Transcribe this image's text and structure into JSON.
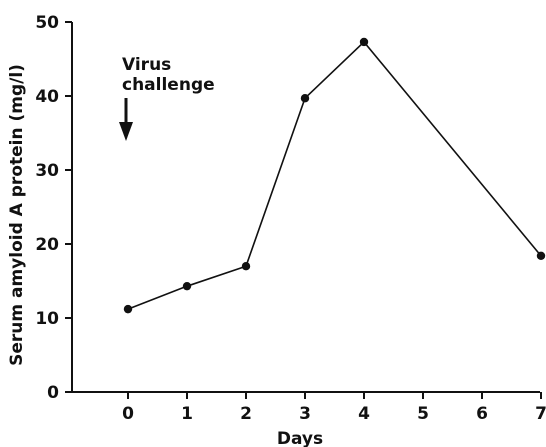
{
  "chart_data": {
    "type": "line",
    "xlabel": "Days",
    "ylabel": "Serum amyloid A protein (mg/l)",
    "xlim": [
      -1,
      7
    ],
    "ylim": [
      0,
      50
    ],
    "x_ticks": [
      0,
      1,
      2,
      3,
      4,
      5,
      6,
      7
    ],
    "y_ticks": [
      0,
      10,
      20,
      30,
      40,
      50
    ],
    "grid": false,
    "series": [
      {
        "x": [
          0,
          1,
          2,
          3,
          4,
          7
        ],
        "values": [
          11.2,
          14.3,
          17.0,
          39.7,
          47.3,
          18.4
        ],
        "marker": "filled-circle",
        "color": "#111111"
      }
    ],
    "annotations": [
      {
        "text_lines": [
          "Virus",
          "challenge"
        ],
        "arrow": "down",
        "x": 0
      }
    ]
  }
}
